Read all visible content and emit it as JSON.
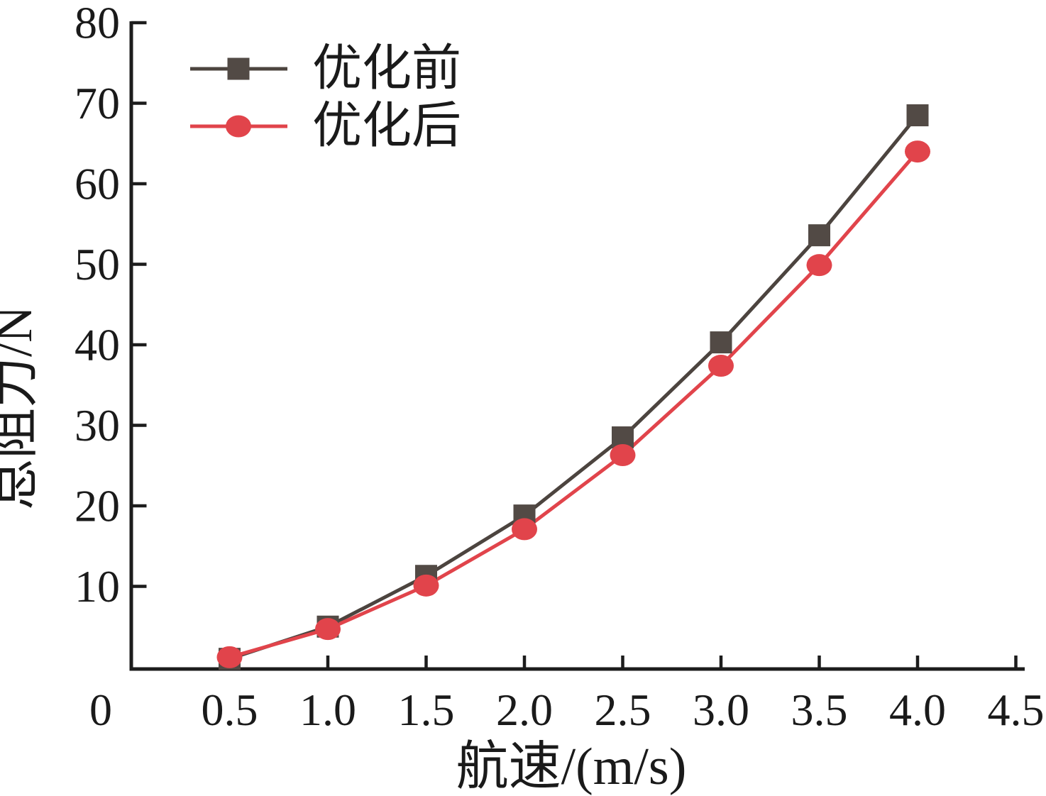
{
  "chart_data": {
    "type": "line",
    "title": "",
    "xlabel": "航速/(m/s)",
    "ylabel": "总阻力/N",
    "x": [
      0.5,
      1.0,
      1.5,
      2.0,
      2.5,
      3.0,
      3.5,
      4.0
    ],
    "series": [
      {
        "name": "优化前",
        "marker": "square",
        "marker_color": "#524a45",
        "line_color": "#4c443f",
        "values": [
          1.0,
          5.0,
          11.3,
          18.8,
          28.5,
          40.3,
          53.6,
          68.5
        ]
      },
      {
        "name": "优化后",
        "marker": "circle",
        "marker_color": "#e1444b",
        "line_color": "#e1444b",
        "values": [
          1.2,
          4.7,
          10.1,
          17.1,
          26.3,
          37.4,
          49.9,
          64.0
        ]
      }
    ],
    "xlim": [
      0,
      4.5
    ],
    "ylim": [
      0,
      80
    ],
    "x_tick_values": [
      0,
      0.5,
      1.0,
      1.5,
      2.0,
      2.5,
      3.0,
      3.5,
      4.0,
      4.5
    ],
    "x_tick_labels": [
      "0",
      "0.5",
      "1.0",
      "1.5",
      "2.0",
      "2.5",
      "3.0",
      "3.5",
      "4.0",
      "4.5"
    ],
    "y_tick_values": [
      10,
      20,
      30,
      40,
      50,
      60,
      70,
      80
    ],
    "y_tick_labels": [
      "10",
      "20",
      "30",
      "40",
      "50",
      "60",
      "70",
      "80"
    ],
    "grid": false,
    "legend_position": "top-left",
    "axis_color": "#1c1c1c",
    "background": "#ffffff"
  }
}
